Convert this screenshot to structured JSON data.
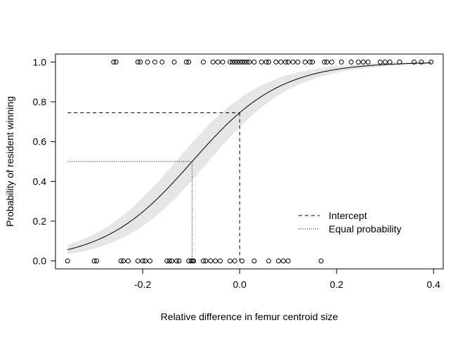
{
  "chart_data": {
    "type": "scatter",
    "xlabel": "Relative difference in femur centroid size",
    "ylabel": "Probability of resident winning",
    "xlim": [
      -0.38,
      0.42
    ],
    "ylim": [
      -0.04,
      1.04
    ],
    "x_ticks": [
      -0.2,
      0.0,
      0.2,
      0.4
    ],
    "x_tick_labels": [
      "-0.2",
      "0.0",
      "0.2",
      "0.4"
    ],
    "y_ticks": [
      0.0,
      0.2,
      0.4,
      0.6,
      0.8,
      1.0
    ],
    "y_tick_labels": [
      "0.0",
      "0.2",
      "0.4",
      "0.6",
      "0.8",
      "1.0"
    ],
    "grid": false,
    "legend": {
      "placement": "bottom-right",
      "entries": [
        {
          "label": "Intercept",
          "line_style": "dashed"
        },
        {
          "label": "Equal probability",
          "line_style": "dotted"
        }
      ]
    },
    "fitted_curve": {
      "model": "logistic",
      "intercept_x": 0.0,
      "intercept_y": 0.745,
      "equal_probability_x": -0.098,
      "x_range": [
        -0.355,
        0.395
      ],
      "ci_halfwidth_max": 0.1
    },
    "reference_lines": {
      "intercept": {
        "x": 0.0,
        "y": 0.745,
        "x_from": -0.355
      },
      "equal_probability": {
        "x": -0.098,
        "y": 0.5,
        "x_from": -0.355
      }
    },
    "points_won": [
      -0.26,
      -0.255,
      -0.21,
      -0.205,
      -0.19,
      -0.175,
      -0.16,
      -0.135,
      -0.11,
      -0.105,
      -0.075,
      -0.055,
      -0.045,
      -0.035,
      -0.02,
      -0.015,
      -0.01,
      -0.005,
      0.0,
      0.005,
      0.01,
      0.015,
      0.02,
      0.03,
      0.045,
      0.055,
      0.06,
      0.075,
      0.085,
      0.095,
      0.1,
      0.11,
      0.12,
      0.135,
      0.145,
      0.15,
      0.175,
      0.18,
      0.19,
      0.21,
      0.23,
      0.245,
      0.255,
      0.265,
      0.29,
      0.3,
      0.31,
      0.33,
      0.36,
      0.375,
      0.395
    ],
    "points_lost": [
      -0.355,
      -0.3,
      -0.295,
      -0.245,
      -0.24,
      -0.23,
      -0.21,
      -0.2,
      -0.195,
      -0.185,
      -0.15,
      -0.145,
      -0.14,
      -0.13,
      -0.125,
      -0.105,
      -0.1,
      -0.097,
      -0.095,
      -0.075,
      -0.07,
      -0.06,
      -0.05,
      -0.04,
      -0.02,
      -0.01,
      0.005,
      0.03,
      0.06,
      0.08,
      0.09,
      0.1,
      0.168
    ]
  }
}
